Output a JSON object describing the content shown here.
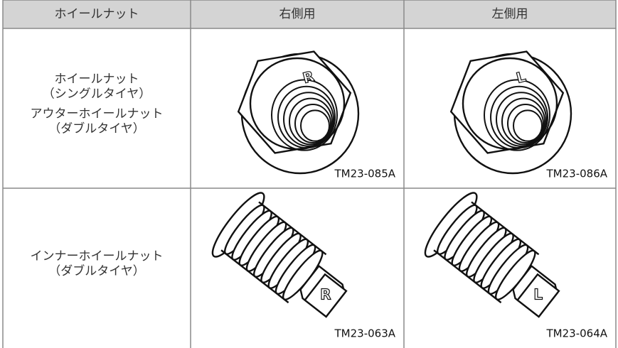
{
  "table": {
    "header": [
      "ホイールナット",
      "右側用",
      "左側用"
    ],
    "rows": [
      {
        "label_groups": [
          [
            "ホイールナット",
            "（シングルタイヤ）"
          ],
          [
            "アウターホイールナット",
            "（ダブルタイヤ）"
          ]
        ],
        "cells": [
          {
            "mark": "R",
            "code": "TM23-085A"
          },
          {
            "mark": "L",
            "code": "TM23-086A"
          }
        ]
      },
      {
        "label_groups": [
          [
            "インナーホイールナット",
            "（ダブルタイヤ）"
          ]
        ],
        "cells": [
          {
            "mark": "R",
            "code": "TM23-063A"
          },
          {
            "mark": "L",
            "code": "TM23-064A"
          }
        ]
      }
    ]
  }
}
